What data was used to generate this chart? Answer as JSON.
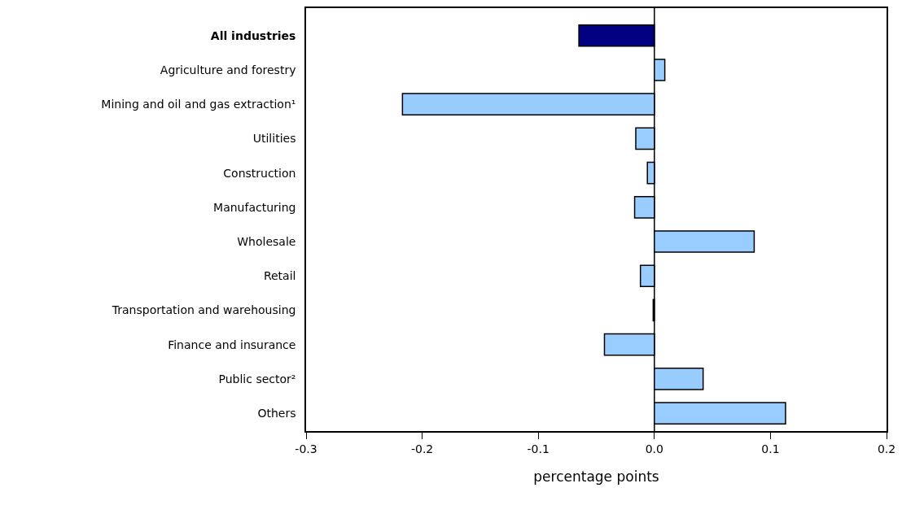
{
  "chart_data": {
    "type": "bar",
    "orientation": "horizontal",
    "categories": [
      "All industries",
      "Agriculture and forestry",
      "Mining and oil and gas extraction¹",
      "Utilities",
      "Construction",
      "Manufacturing",
      "Wholesale",
      "Retail",
      "Transportation and warehousing",
      "Finance and insurance",
      "Public sector²",
      "Others"
    ],
    "values": [
      -0.065,
      0.009,
      -0.217,
      -0.016,
      -0.006,
      -0.017,
      0.086,
      -0.012,
      -0.001,
      -0.043,
      0.042,
      0.113
    ],
    "colors": [
      "#000080",
      "#99ccff",
      "#99ccff",
      "#99ccff",
      "#99ccff",
      "#99ccff",
      "#99ccff",
      "#99ccff",
      "#99ccff",
      "#99ccff",
      "#99ccff",
      "#99ccff"
    ],
    "xlabel": "percentage points",
    "xlim": [
      -0.3,
      0.2
    ],
    "xticks": [
      {
        "value": -0.3,
        "label": "-0.3"
      },
      {
        "value": -0.2,
        "label": "-0.2"
      },
      {
        "value": -0.1,
        "label": "-0.1"
      },
      {
        "value": 0.0,
        "label": "0.0"
      },
      {
        "value": 0.1,
        "label": "0.1"
      },
      {
        "value": 0.2,
        "label": "0.2"
      }
    ],
    "ref_lines": [
      {
        "axis": "x",
        "value": 0,
        "color": "#000000"
      }
    ]
  }
}
